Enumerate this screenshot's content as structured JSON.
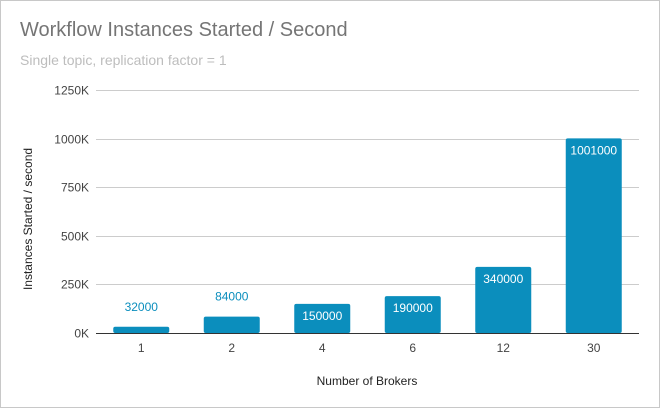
{
  "chart_data": {
    "type": "bar",
    "title": "Workflow Instances Started / Second",
    "subtitle": "Single topic, replication factor = 1",
    "xlabel": "Number of Brokers",
    "ylabel": "Instances Started / second",
    "categories": [
      "1",
      "2",
      "4",
      "6",
      "12",
      "30"
    ],
    "values": [
      32000,
      84000,
      150000,
      190000,
      340000,
      1001000
    ],
    "data_labels": [
      "32000",
      "84000",
      "150000",
      "190000",
      "340000",
      "1001000"
    ],
    "ylim": [
      0,
      1250000
    ],
    "yticks": [
      0,
      250000,
      500000,
      750000,
      1000000,
      1250000
    ],
    "ytick_labels": [
      "0K",
      "250K",
      "500K",
      "750K",
      "1000K",
      "1250K"
    ],
    "grid": true,
    "legend": "none",
    "bar_color": "#0b8ebd",
    "label_inside_color": "#ffffff",
    "label_outside_color": "#0b8ebd"
  }
}
